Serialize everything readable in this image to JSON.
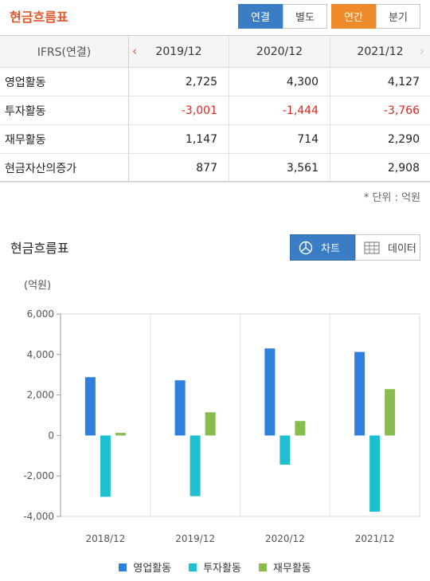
{
  "header": {
    "title": "현금흐름표",
    "consolidated": "연결",
    "separate": "별도",
    "annual": "연간",
    "quarterly": "분기"
  },
  "table": {
    "standard": "IFRS(연결)",
    "periods": [
      "2019/12",
      "2020/12",
      "2021/12"
    ],
    "rows": [
      {
        "label": "영업활동",
        "values": [
          "2,725",
          "4,300",
          "4,127"
        ]
      },
      {
        "label": "투자활동",
        "values": [
          "-3,001",
          "-1,444",
          "-3,766"
        ]
      },
      {
        "label": "재무활동",
        "values": [
          "1,147",
          "714",
          "2,290"
        ]
      },
      {
        "label": "현금자산의증가",
        "values": [
          "877",
          "3,561",
          "2,908"
        ]
      }
    ],
    "unit_note": "* 단위 : 억원"
  },
  "chart_section": {
    "title": "현금흐름표",
    "chart_tab": "차트",
    "data_tab": "데이터"
  },
  "chart_data": {
    "type": "bar",
    "unit_label": "(억원)",
    "categories": [
      "2018/12",
      "2019/12",
      "2020/12",
      "2021/12"
    ],
    "series": [
      {
        "name": "영업활동",
        "color": "#2f7fde",
        "values": [
          2880,
          2725,
          4300,
          4127
        ]
      },
      {
        "name": "투자활동",
        "color": "#1ec0cf",
        "values": [
          -3030,
          -3001,
          -1444,
          -3766
        ]
      },
      {
        "name": "재무활동",
        "color": "#87bd4e",
        "values": [
          130,
          1147,
          714,
          2290
        ]
      }
    ],
    "ylim": [
      -4000,
      6000
    ],
    "yticks": [
      6000,
      4000,
      2000,
      0,
      -2000,
      -4000
    ],
    "ytick_labels": [
      "6,000",
      "4,000",
      "2,000",
      "0",
      "-2,000",
      "-4,000"
    ],
    "grid": "vertical",
    "legend": "bottom-center"
  }
}
